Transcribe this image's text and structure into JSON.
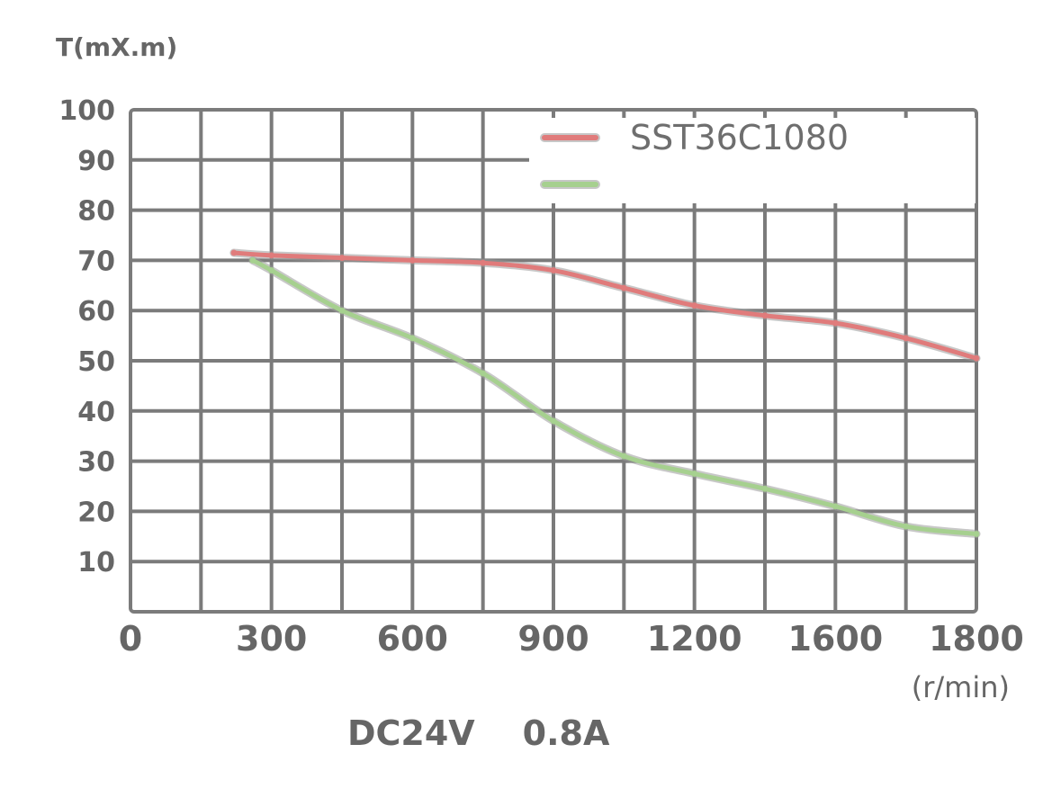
{
  "chart_data": {
    "type": "line",
    "ylabel": "T(mX.m)",
    "xunit": "(r/min)",
    "footer": "DC24V    0.8A",
    "y_ticks": [
      "100",
      "90",
      "80",
      "70",
      "60",
      "50",
      "40",
      "30",
      "20",
      "10"
    ],
    "x_ticks": [
      "0",
      "300",
      "600",
      "900",
      "1200",
      "1600",
      "1800"
    ],
    "ylim": [
      0,
      100
    ],
    "xlim": [
      0,
      1800
    ],
    "grid": true,
    "legend_position": "top-right",
    "series": [
      {
        "name": "SST36C1080",
        "color": "#e07b7b",
        "x": [
          220,
          300,
          450,
          600,
          750,
          900,
          1050,
          1200,
          1350,
          1500,
          1650,
          1800
        ],
        "y": [
          71.5,
          71,
          70.5,
          70,
          69.5,
          68,
          64.5,
          61,
          59,
          57.5,
          54.5,
          50.5
        ]
      },
      {
        "name": "",
        "color": "#a6d08f",
        "x": [
          260,
          300,
          450,
          600,
          750,
          900,
          1050,
          1200,
          1350,
          1500,
          1650,
          1800
        ],
        "y": [
          70,
          68,
          60,
          54.5,
          47.5,
          38,
          31,
          27.5,
          24.5,
          21,
          17,
          15.5
        ]
      }
    ]
  }
}
